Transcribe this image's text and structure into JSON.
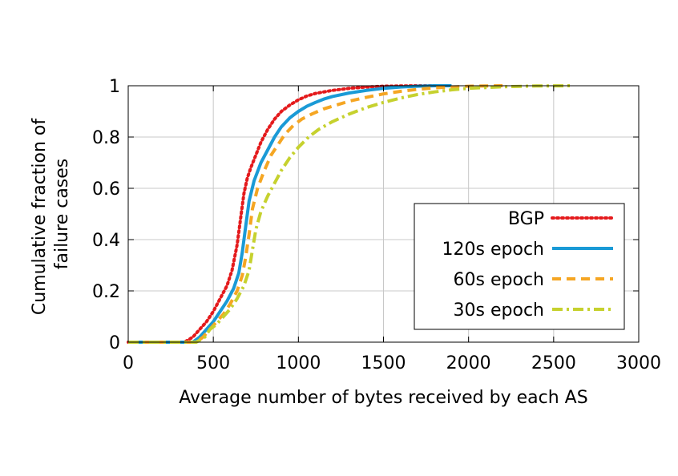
{
  "chart_data": {
    "type": "line",
    "title": "",
    "xlabel": "Average number of bytes received by each AS",
    "ylabel": "Cumulative fraction of failure cases",
    "ylabel_lines": [
      "Cumulative fraction of",
      "failure cases"
    ],
    "xlim": [
      0,
      3000
    ],
    "ylim": [
      0,
      1
    ],
    "xticks": [
      "0",
      "500",
      "1000",
      "1500",
      "2000",
      "2500",
      "3000"
    ],
    "yticks": [
      "0",
      "0.2",
      "0.4",
      "0.6",
      "0.8",
      "1"
    ],
    "grid": true,
    "legend_position": "bottom-right",
    "series": [
      {
        "name": "BGP",
        "color": "#e41a1c",
        "style": "dotted",
        "x": [
          0,
          330,
          380,
          420,
          460,
          500,
          540,
          580,
          610,
          640,
          660,
          680,
          700,
          720,
          750,
          780,
          820,
          860,
          900,
          950,
          1000,
          1050,
          1100,
          1200,
          1300,
          1400,
          1500,
          1600,
          1700,
          1800
        ],
        "y": [
          0,
          0,
          0.02,
          0.05,
          0.08,
          0.12,
          0.17,
          0.22,
          0.28,
          0.38,
          0.48,
          0.58,
          0.64,
          0.68,
          0.73,
          0.78,
          0.83,
          0.87,
          0.9,
          0.925,
          0.945,
          0.96,
          0.97,
          0.982,
          0.99,
          0.995,
          0.998,
          0.999,
          1.0,
          1.0
        ]
      },
      {
        "name": "120s epoch",
        "color": "#1a9ad6",
        "style": "solid",
        "x": [
          0,
          380,
          420,
          460,
          500,
          540,
          580,
          620,
          650,
          670,
          690,
          710,
          740,
          780,
          820,
          860,
          900,
          950,
          1000,
          1050,
          1100,
          1150,
          1200,
          1300,
          1400,
          1500,
          1600,
          1700,
          1800,
          1900
        ],
        "y": [
          0,
          0,
          0.02,
          0.05,
          0.08,
          0.12,
          0.16,
          0.21,
          0.27,
          0.35,
          0.45,
          0.55,
          0.63,
          0.7,
          0.75,
          0.8,
          0.84,
          0.875,
          0.9,
          0.92,
          0.935,
          0.948,
          0.958,
          0.972,
          0.982,
          0.99,
          0.995,
          0.998,
          1.0,
          1.0
        ]
      },
      {
        "name": "60s epoch",
        "color": "#f5a623",
        "style": "dashed",
        "x": [
          0,
          400,
          440,
          480,
          520,
          560,
          600,
          640,
          670,
          690,
          710,
          730,
          760,
          800,
          840,
          880,
          920,
          970,
          1020,
          1080,
          1150,
          1200,
          1300,
          1400,
          1500,
          1600,
          1700,
          1800,
          2000,
          2200
        ],
        "y": [
          0,
          0,
          0.02,
          0.05,
          0.08,
          0.11,
          0.15,
          0.2,
          0.26,
          0.33,
          0.42,
          0.52,
          0.6,
          0.67,
          0.73,
          0.77,
          0.81,
          0.845,
          0.87,
          0.89,
          0.91,
          0.92,
          0.94,
          0.955,
          0.968,
          0.978,
          0.986,
          0.992,
          0.998,
          1.0
        ]
      },
      {
        "name": "30s epoch",
        "color": "#c6d12e",
        "style": "dashdot",
        "x": [
          0,
          400,
          450,
          480,
          520,
          560,
          600,
          640,
          680,
          710,
          730,
          750,
          780,
          820,
          860,
          900,
          950,
          1000,
          1060,
          1120,
          1200,
          1300,
          1400,
          1500,
          1600,
          1700,
          1800,
          1900,
          2000,
          2200,
          2400,
          2600
        ],
        "y": [
          0,
          0,
          0.02,
          0.05,
          0.07,
          0.1,
          0.13,
          0.17,
          0.22,
          0.28,
          0.36,
          0.44,
          0.51,
          0.57,
          0.62,
          0.67,
          0.72,
          0.76,
          0.8,
          0.83,
          0.86,
          0.89,
          0.915,
          0.935,
          0.952,
          0.966,
          0.976,
          0.984,
          0.99,
          0.996,
          0.999,
          1.0
        ]
      }
    ]
  }
}
